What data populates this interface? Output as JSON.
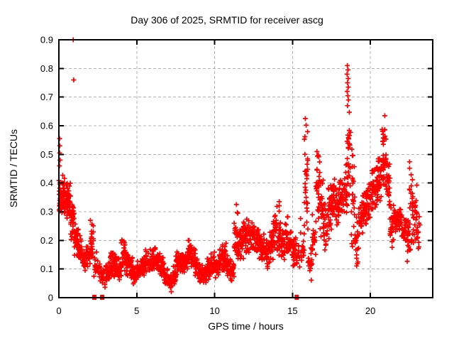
{
  "title": "Day 306 of 2025, SRMTID for receiver ascg",
  "chart_data": {
    "type": "scatter",
    "title": "Day 306 of 2025, SRMTID for receiver ascg",
    "xlabel": "GPS time / hours",
    "ylabel": "SRMTID / TECUs",
    "xlim": [
      0,
      24
    ],
    "ylim": [
      0,
      0.9
    ],
    "xticks": [
      0,
      5,
      10,
      15,
      20
    ],
    "yticks": [
      0,
      0.1,
      0.2,
      0.3,
      0.4,
      0.5,
      0.6,
      0.7,
      0.8,
      0.9
    ],
    "grid": true,
    "legend_position": "none",
    "marker": "plus",
    "marker_color": "#ff0000",
    "grid_color": "#b0b0b0",
    "axis_color": "#000000",
    "density_bins": [
      [
        0.125,
        0.28,
        0.44,
        42
      ],
      [
        0.375,
        0.28,
        0.44,
        36
      ],
      [
        0.625,
        0.26,
        0.41,
        32
      ],
      [
        0.875,
        0.2,
        0.34,
        30
      ],
      [
        1.125,
        0.14,
        0.27,
        30
      ],
      [
        1.375,
        0.12,
        0.22,
        28
      ],
      [
        1.625,
        0.09,
        0.17,
        26
      ],
      [
        1.875,
        0.1,
        0.2,
        24
      ],
      [
        2.125,
        0.1,
        0.27,
        22
      ],
      [
        2.375,
        0.06,
        0.16,
        16
      ],
      [
        2.625,
        0.05,
        0.13,
        14
      ],
      [
        2.875,
        0.03,
        0.11,
        14
      ],
      [
        3.125,
        0.05,
        0.13,
        22
      ],
      [
        3.375,
        0.06,
        0.2,
        24
      ],
      [
        3.625,
        0.06,
        0.16,
        24
      ],
      [
        3.875,
        0.06,
        0.14,
        24
      ],
      [
        4.125,
        0.06,
        0.25,
        26
      ],
      [
        4.375,
        0.07,
        0.17,
        24
      ],
      [
        4.625,
        0.06,
        0.16,
        24
      ],
      [
        4.875,
        0.04,
        0.11,
        24
      ],
      [
        5.125,
        0.06,
        0.13,
        24
      ],
      [
        5.375,
        0.07,
        0.15,
        25
      ],
      [
        5.625,
        0.08,
        0.17,
        25
      ],
      [
        5.875,
        0.08,
        0.17,
        25
      ],
      [
        6.125,
        0.09,
        0.18,
        25
      ],
      [
        6.375,
        0.09,
        0.18,
        25
      ],
      [
        6.625,
        0.07,
        0.15,
        24
      ],
      [
        6.875,
        0.04,
        0.11,
        22
      ],
      [
        7.125,
        0.02,
        0.09,
        20
      ],
      [
        7.375,
        0.04,
        0.12,
        24
      ],
      [
        7.625,
        0.07,
        0.16,
        26
      ],
      [
        7.875,
        0.08,
        0.16,
        26
      ],
      [
        8.125,
        0.08,
        0.17,
        25
      ],
      [
        8.375,
        0.1,
        0.21,
        26
      ],
      [
        8.625,
        0.09,
        0.19,
        25
      ],
      [
        8.875,
        0.06,
        0.14,
        24
      ],
      [
        9.125,
        0.05,
        0.12,
        23
      ],
      [
        9.375,
        0.04,
        0.12,
        23
      ],
      [
        9.625,
        0.06,
        0.14,
        24
      ],
      [
        9.875,
        0.07,
        0.17,
        25
      ],
      [
        10.125,
        0.06,
        0.14,
        24
      ],
      [
        10.375,
        0.08,
        0.18,
        24
      ],
      [
        10.625,
        0.09,
        0.2,
        25
      ],
      [
        10.875,
        0.07,
        0.16,
        24
      ],
      [
        11.125,
        0.05,
        0.13,
        23
      ],
      [
        11.375,
        0.1,
        0.32,
        26
      ],
      [
        11.625,
        0.12,
        0.26,
        25
      ],
      [
        11.875,
        0.12,
        0.3,
        25
      ],
      [
        12.125,
        0.14,
        0.3,
        25
      ],
      [
        12.375,
        0.15,
        0.28,
        25
      ],
      [
        12.625,
        0.14,
        0.27,
        24
      ],
      [
        12.875,
        0.13,
        0.25,
        24
      ],
      [
        13.125,
        0.12,
        0.23,
        24
      ],
      [
        13.375,
        0.1,
        0.21,
        23
      ],
      [
        13.625,
        0.12,
        0.25,
        24
      ],
      [
        13.875,
        0.14,
        0.31,
        24
      ],
      [
        14.125,
        0.14,
        0.33,
        24
      ],
      [
        14.375,
        0.12,
        0.25,
        23
      ],
      [
        14.625,
        0.14,
        0.29,
        24
      ],
      [
        14.875,
        0.13,
        0.26,
        23
      ],
      [
        15.125,
        0.1,
        0.24,
        20
      ],
      [
        15.375,
        0.08,
        0.25,
        14
      ],
      [
        15.625,
        0.05,
        0.3,
        16
      ],
      [
        15.875,
        0.15,
        0.63,
        30
      ],
      [
        16.125,
        0.03,
        0.2,
        20
      ],
      [
        16.375,
        0.1,
        0.3,
        18
      ],
      [
        16.625,
        0.25,
        0.55,
        26
      ],
      [
        16.875,
        0.2,
        0.42,
        24
      ],
      [
        17.125,
        0.15,
        0.35,
        23
      ],
      [
        17.375,
        0.2,
        0.4,
        24
      ],
      [
        17.625,
        0.25,
        0.45,
        25
      ],
      [
        17.875,
        0.22,
        0.42,
        25
      ],
      [
        18.125,
        0.26,
        0.44,
        25
      ],
      [
        18.375,
        0.28,
        0.48,
        25
      ],
      [
        18.625,
        0.3,
        0.66,
        28
      ],
      [
        18.875,
        0.1,
        0.55,
        24
      ],
      [
        19.125,
        0.06,
        0.3,
        20
      ],
      [
        19.375,
        0.2,
        0.35,
        23
      ],
      [
        19.625,
        0.24,
        0.38,
        24
      ],
      [
        19.875,
        0.26,
        0.44,
        25
      ],
      [
        20.125,
        0.28,
        0.46,
        25
      ],
      [
        20.375,
        0.3,
        0.48,
        26
      ],
      [
        20.625,
        0.32,
        0.55,
        27
      ],
      [
        20.875,
        0.35,
        0.62,
        26
      ],
      [
        20.875,
        0.54,
        0.61,
        8
      ],
      [
        21.125,
        0.28,
        0.52,
        25
      ],
      [
        21.375,
        0.15,
        0.35,
        23
      ],
      [
        21.625,
        0.2,
        0.33,
        24
      ],
      [
        21.875,
        0.22,
        0.33,
        24
      ],
      [
        22.125,
        0.18,
        0.3,
        23
      ],
      [
        22.375,
        0.12,
        0.3,
        22
      ],
      [
        22.625,
        0.12,
        0.54,
        26
      ],
      [
        22.875,
        0.18,
        0.42,
        22
      ],
      [
        23.125,
        0.15,
        0.3,
        12
      ]
    ],
    "outlier_points": [
      [
        0.92,
        0.9
      ],
      [
        0.95,
        0.76
      ],
      [
        0.05,
        0.555
      ],
      [
        0.06,
        0.53
      ],
      [
        0.05,
        0.505
      ],
      [
        0.08,
        0.48
      ],
      [
        0.04,
        0.46
      ],
      [
        18.52,
        0.81
      ],
      [
        18.56,
        0.795
      ],
      [
        18.5,
        0.78
      ],
      [
        18.57,
        0.765
      ],
      [
        18.53,
        0.75
      ],
      [
        18.58,
        0.735
      ],
      [
        18.51,
        0.72
      ],
      [
        18.55,
        0.705
      ],
      [
        18.59,
        0.69
      ],
      [
        18.53,
        0.67
      ],
      [
        20.92,
        0.635
      ],
      [
        15.82,
        0.625
      ],
      [
        2.02,
        0.27
      ],
      [
        11.4,
        0.325
      ],
      [
        14.15,
        0.335
      ]
    ],
    "gap_marker_x": [
      2.28,
      2.78,
      15.27
    ]
  }
}
